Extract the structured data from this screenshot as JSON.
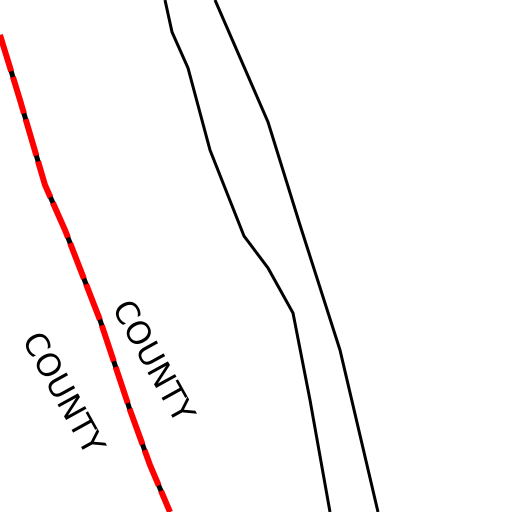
{
  "labels": [
    "COUNTY",
    "COUNTY"
  ]
}
